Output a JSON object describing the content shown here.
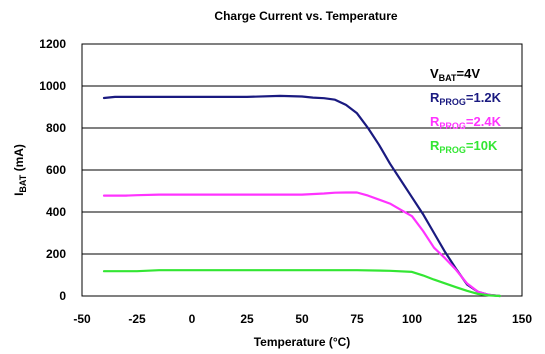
{
  "chart_data": {
    "type": "line",
    "title": "Charge Current  vs. Temperature",
    "xlabel": "Temperature (°C)",
    "ylabel": {
      "main": "I",
      "sub": "BAT",
      "rest": " (mA)"
    },
    "xlim": [
      -50,
      150
    ],
    "ylim": [
      0,
      1200
    ],
    "xticks": [
      -50,
      -25,
      0,
      25,
      50,
      75,
      100,
      125,
      150
    ],
    "yticks": [
      0,
      200,
      400,
      600,
      800,
      1000,
      1200
    ],
    "grid": true,
    "legend_placement": "top-right",
    "legend": [
      {
        "main": "V",
        "sub": "BAT",
        "rest": "=4V",
        "color": "#000000"
      },
      {
        "main": "R",
        "sub": "PROG",
        "rest": "=1.2K",
        "color": "#1a1a80"
      },
      {
        "main": "R",
        "sub": "PROG",
        "rest": "=2.4K",
        "color": "#ff33ff"
      },
      {
        "main": "R",
        "sub": "PROG",
        "rest": "=10K",
        "color": "#33e633"
      }
    ],
    "series": [
      {
        "color": "#1a1a80",
        "x": [
          -40,
          -35,
          -25,
          0,
          25,
          40,
          50,
          55,
          60,
          65,
          70,
          75,
          80,
          85,
          90,
          95,
          100,
          105,
          110,
          115,
          120,
          125,
          130,
          135,
          140
        ],
        "y": [
          943,
          948,
          948,
          948,
          948,
          953,
          950,
          945,
          942,
          935,
          910,
          870,
          800,
          720,
          630,
          550,
          470,
          390,
          300,
          210,
          130,
          55,
          20,
          5,
          0
        ]
      },
      {
        "color": "#ff33ff",
        "x": [
          -40,
          -30,
          -25,
          -15,
          0,
          25,
          50,
          60,
          65,
          70,
          75,
          80,
          90,
          95,
          100,
          105,
          110,
          115,
          120,
          125,
          130,
          135,
          140
        ],
        "y": [
          478,
          478,
          480,
          483,
          483,
          483,
          483,
          488,
          492,
          493,
          493,
          478,
          440,
          410,
          380,
          310,
          230,
          180,
          125,
          60,
          20,
          5,
          0
        ]
      },
      {
        "color": "#33e633",
        "x": [
          -40,
          -25,
          -15,
          0,
          25,
          50,
          75,
          90,
          100,
          105,
          110,
          120,
          125,
          130,
          135,
          140
        ],
        "y": [
          118,
          118,
          123,
          123,
          123,
          123,
          123,
          120,
          115,
          98,
          78,
          42,
          25,
          10,
          3,
          0
        ]
      }
    ]
  }
}
